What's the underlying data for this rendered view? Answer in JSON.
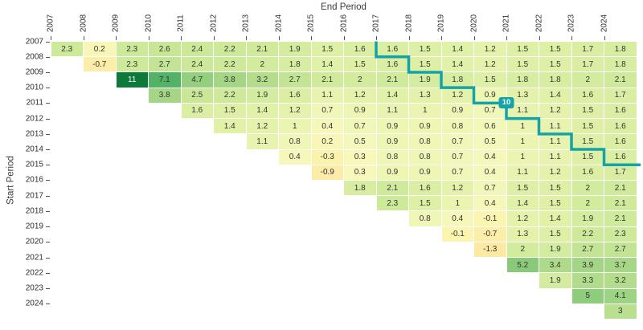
{
  "chart_data": {
    "type": "heatmap",
    "subtype": "returns-triangle",
    "xlabel": "End Period",
    "ylabel": "Start Period",
    "x_ticks": [
      "2007",
      "2008",
      "2009",
      "2010",
      "2011",
      "2012",
      "2013",
      "2014",
      "2015",
      "2016",
      "2017",
      "2018",
      "2019",
      "2020",
      "2021",
      "2022",
      "2023",
      "2024"
    ],
    "y_ticks": [
      "2007",
      "2008",
      "2009",
      "2010",
      "2011",
      "2012",
      "2013",
      "2014",
      "2015",
      "2016",
      "2017",
      "2018",
      "2019",
      "2020",
      "2021",
      "2022",
      "2023",
      "2024"
    ],
    "triangle_rows": [
      {
        "start_period": "2007",
        "values": [
          2.3,
          0.2,
          2.3,
          2.6,
          2.4,
          2.2,
          2.1,
          1.9,
          1.5,
          1.6,
          1.6,
          1.5,
          1.4,
          1.2,
          1.5,
          1.5,
          1.7,
          1.8
        ]
      },
      {
        "start_period": "2008",
        "values": [
          -0.7,
          2.3,
          2.7,
          2.4,
          2.2,
          2,
          1.8,
          1.4,
          1.5,
          1.6,
          1.5,
          1.4,
          1.2,
          1.5,
          1.5,
          1.7,
          1.8
        ]
      },
      {
        "start_period": "2009",
        "values": [
          11,
          7.1,
          4.7,
          3.8,
          3.2,
          2.7,
          2.1,
          2,
          2.1,
          1.9,
          1.8,
          1.5,
          1.8,
          1.8,
          2,
          2.1
        ]
      },
      {
        "start_period": "2010",
        "values": [
          3.8,
          2.5,
          2.2,
          1.9,
          1.6,
          1.1,
          1.2,
          1.4,
          1.3,
          1.2,
          0.9,
          1.3,
          1.4,
          1.6,
          1.7
        ]
      },
      {
        "start_period": "2011",
        "values": [
          1.6,
          1.5,
          1.4,
          1.2,
          0.7,
          0.9,
          1.1,
          1,
          0.9,
          0.7,
          1.1,
          1.2,
          1.5,
          1.6
        ]
      },
      {
        "start_period": "2012",
        "values": [
          1.4,
          1.2,
          1,
          0.4,
          0.7,
          0.9,
          0.9,
          0.8,
          0.6,
          1,
          1.1,
          1.5,
          1.6
        ]
      },
      {
        "start_period": "2013",
        "values": [
          1.1,
          0.8,
          0.2,
          0.5,
          0.9,
          0.8,
          0.7,
          0.5,
          1,
          1.1,
          1.5,
          1.6
        ]
      },
      {
        "start_period": "2014",
        "values": [
          0.4,
          -0.3,
          0.3,
          0.8,
          0.8,
          0.7,
          0.4,
          1,
          1.1,
          1.5,
          1.6
        ]
      },
      {
        "start_period": "2015",
        "values": [
          -0.9,
          0.3,
          0.9,
          0.9,
          0.7,
          0.4,
          1.1,
          1.2,
          1.6,
          1.7
        ]
      },
      {
        "start_period": "2016",
        "values": [
          1.8,
          2.1,
          1.6,
          1.2,
          0.7,
          1.5,
          1.5,
          2,
          2.1
        ]
      },
      {
        "start_period": "2017",
        "values": [
          2.3,
          1.5,
          1,
          0.4,
          1.4,
          1.5,
          2,
          2.1
        ]
      },
      {
        "start_period": "2018",
        "values": [
          0.8,
          0.4,
          -0.1,
          1.2,
          1.4,
          1.9,
          2.1
        ]
      },
      {
        "start_period": "2019",
        "values": [
          -0.1,
          -0.7,
          1.3,
          1.5,
          2.2,
          2.3
        ]
      },
      {
        "start_period": "2020",
        "values": [
          -1.3,
          2,
          1.9,
          2.7,
          2.7
        ]
      },
      {
        "start_period": "2021",
        "values": [
          5.2,
          3.4,
          3.9,
          3.7
        ]
      },
      {
        "start_period": "2022",
        "values": [
          1.9,
          3.3,
          3.2
        ]
      },
      {
        "start_period": "2023",
        "values": [
          5,
          4.1
        ]
      },
      {
        "start_period": "2024",
        "values": [
          3
        ]
      }
    ],
    "overlay_line": {
      "label": "10",
      "horizon": 10,
      "color": "#14a3a6"
    },
    "color_scale": [
      [
        -1.5,
        "#fce7a1"
      ],
      [
        -0.8,
        "#fceda8"
      ],
      [
        -0.3,
        "#fbf2ac"
      ],
      [
        0.1,
        "#faf7b6"
      ],
      [
        0.5,
        "#f4f8bc"
      ],
      [
        0.9,
        "#eef6b4"
      ],
      [
        1.2,
        "#e5f2ac"
      ],
      [
        1.6,
        "#dbefa4"
      ],
      [
        2.0,
        "#d2eb9d"
      ],
      [
        2.5,
        "#cae798"
      ],
      [
        3.0,
        "#b9e08f"
      ],
      [
        3.6,
        "#a8d887"
      ],
      [
        4.2,
        "#9bd382"
      ],
      [
        5.0,
        "#8ecd7c"
      ],
      [
        6.0,
        "#71bf6e"
      ],
      [
        7.1,
        "#52b266"
      ],
      [
        8.5,
        "#309850"
      ],
      [
        11,
        "#0d793a"
      ]
    ],
    "white_text_threshold": 8.5,
    "value_text_color": "#333333"
  }
}
